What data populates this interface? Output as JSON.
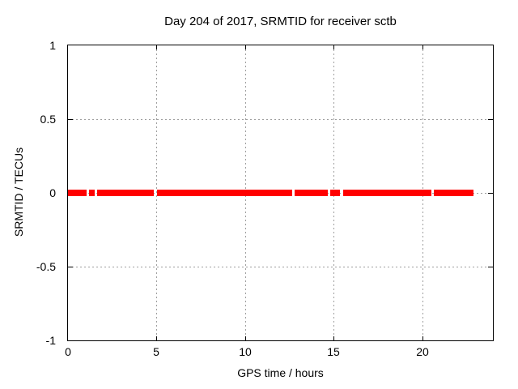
{
  "colors": {
    "background": "#ffffff",
    "axis": "#000000",
    "grid": "#9e9e9e",
    "series": "#ff0000"
  },
  "chart_data": {
    "type": "scatter",
    "title": "Day 204 of 2017, SRMTID for receiver sctb",
    "xlabel": "GPS time / hours",
    "ylabel": "SRMTID / TECUs",
    "xlim": [
      0,
      24
    ],
    "ylim": [
      -1,
      1
    ],
    "x_ticks": [
      0,
      5,
      10,
      15,
      20
    ],
    "x_tick_labels": [
      "0",
      "5",
      "10",
      "15",
      "20"
    ],
    "y_ticks": [
      1,
      0.5,
      0,
      -0.5,
      -1
    ],
    "y_tick_labels": [
      "1",
      "0.5",
      "0",
      "-0.5",
      "-1"
    ],
    "grid": true,
    "legend": "none",
    "series": [
      {
        "name": "SRMTID",
        "color": "#ff0000",
        "y": 0,
        "marker": "filled-square-band",
        "segments_hours": [
          {
            "start": 0.0,
            "end": 1.05
          },
          {
            "start": 1.19,
            "end": 1.51
          },
          {
            "start": 1.64,
            "end": 4.84
          },
          {
            "start": 5.02,
            "end": 12.66
          },
          {
            "start": 12.8,
            "end": 14.67
          },
          {
            "start": 14.82,
            "end": 15.36
          },
          {
            "start": 15.53,
            "end": 20.54
          },
          {
            "start": 20.66,
            "end": 22.9
          }
        ]
      }
    ]
  }
}
